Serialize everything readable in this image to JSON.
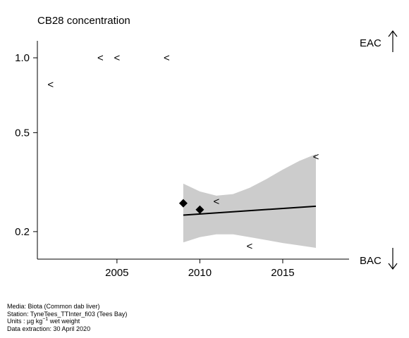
{
  "chart_data": {
    "type": "scatter",
    "title": "CB28 concentration",
    "y_scale": "log",
    "xlim": [
      2000.2,
      2019.0
    ],
    "ylim": [
      0.155,
      1.17
    ],
    "x_ticks": [
      2005,
      2010,
      2015
    ],
    "y_ticks": [
      0.2,
      0.5,
      1.0
    ],
    "y_tick_labels": [
      "0.2",
      "0.5",
      "1.0"
    ],
    "threshold_labels": {
      "upper": "EAC",
      "lower": "BAC"
    },
    "less_than_marker": "<",
    "points_detected": [
      {
        "x": 2009,
        "y": 0.26
      },
      {
        "x": 2010,
        "y": 0.245
      }
    ],
    "points_below_detection": [
      {
        "x": 2001,
        "y": 0.78
      },
      {
        "x": 2004,
        "y": 1.0
      },
      {
        "x": 2005,
        "y": 1.0
      },
      {
        "x": 2008,
        "y": 1.0
      },
      {
        "x": 2011,
        "y": 0.265
      },
      {
        "x": 2013,
        "y": 0.175
      },
      {
        "x": 2017,
        "y": 0.4
      }
    ],
    "trend": {
      "x": [
        2009,
        2017
      ],
      "fit": [
        0.233,
        0.253
      ],
      "lower": [
        0.181,
        0.172
      ],
      "upper": [
        0.312,
        0.41
      ],
      "band_x": [
        2009,
        2010,
        2011,
        2012,
        2013,
        2014,
        2015,
        2016,
        2017
      ],
      "band_lower": [
        0.181,
        0.19,
        0.195,
        0.195,
        0.19,
        0.185,
        0.18,
        0.176,
        0.172
      ],
      "band_upper": [
        0.312,
        0.29,
        0.279,
        0.283,
        0.3,
        0.325,
        0.355,
        0.385,
        0.41
      ]
    }
  },
  "footer": {
    "media": "Media: Biota (Common dab liver)",
    "station": "Station: TyneTees_TTInter_fi03 (Tees Bay)",
    "units_prefix": "Units : µg kg",
    "units_sup": "−1",
    "units_suffix": " wet weight",
    "extraction": "Data extraction: 30 April 2020"
  }
}
